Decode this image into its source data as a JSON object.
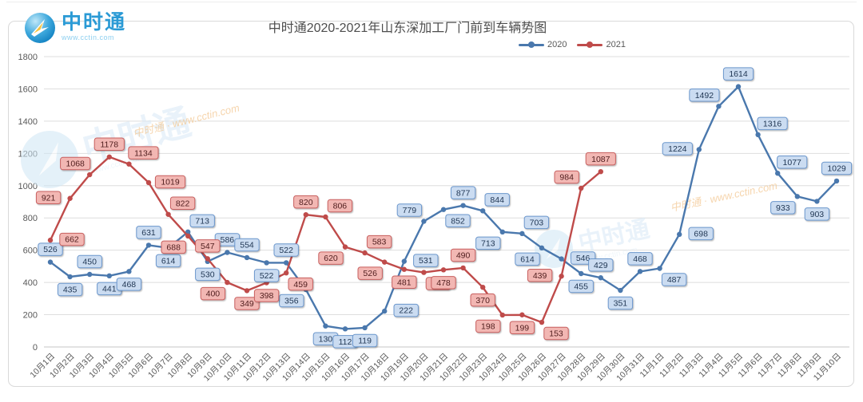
{
  "header": {
    "logo_text": "中时通",
    "logo_url": "www.cctin.com"
  },
  "watermark": {
    "text": "中时通",
    "url": "www.cctin.com"
  },
  "legend": {
    "items": [
      "2020",
      "2021"
    ]
  },
  "chart_data": {
    "type": "line",
    "title": "中时通2020-2021年山东深加工厂门前到车辆势图",
    "xlabel": "",
    "ylabel": "",
    "ylim": [
      0,
      1800
    ],
    "ytick_step": 200,
    "grid": true,
    "legend_position": "top",
    "axis_color": "#595959",
    "x": [
      "10月1日",
      "10月2日",
      "10月3日",
      "10月4日",
      "10月5日",
      "10月6日",
      "10月7日",
      "10月8日",
      "10月9日",
      "10月10日",
      "10月11日",
      "10月12日",
      "10月13日",
      "10月14日",
      "10月15日",
      "10月16日",
      "10月17日",
      "10月18日",
      "10月19日",
      "10月20日",
      "10月21日",
      "10月22日",
      "10月23日",
      "10月24日",
      "10月25日",
      "10月26日",
      "10月27日",
      "10月28日",
      "10月29日",
      "10月30日",
      "10月31日",
      "11月1日",
      "11月2日",
      "11月3日",
      "11月4日",
      "11月5日",
      "11月6日",
      "11月7日",
      "11月8日",
      "11月9日",
      "11月10日"
    ],
    "series": [
      {
        "name": "2020",
        "color": "#4a78ad",
        "label_fill": "#cbdcf1",
        "label_border": "#6b96cc",
        "label_text_color": "#1f3552",
        "values": [
          526,
          435,
          450,
          441,
          468,
          631,
          614,
          713,
          530,
          586,
          554,
          522,
          522,
          356,
          130,
          112,
          119,
          222,
          531,
          779,
          852,
          877,
          844,
          713,
          703,
          614,
          546,
          455,
          429,
          351,
          468,
          487,
          698,
          1224,
          1492,
          1614,
          1316,
          1077,
          933,
          903,
          1029
        ]
      },
      {
        "name": "2021",
        "color": "#bf4b4a",
        "label_fill": "#f2b7b3",
        "label_border": "#c75f5e",
        "label_text_color": "#4f1d1d",
        "values": [
          662,
          921,
          1068,
          1178,
          1134,
          1019,
          822,
          688,
          547,
          400,
          349,
          398,
          459,
          820,
          806,
          620,
          583,
          526,
          481,
          462,
          478,
          490,
          370,
          198,
          199,
          153,
          439,
          984,
          1087
        ]
      }
    ]
  }
}
